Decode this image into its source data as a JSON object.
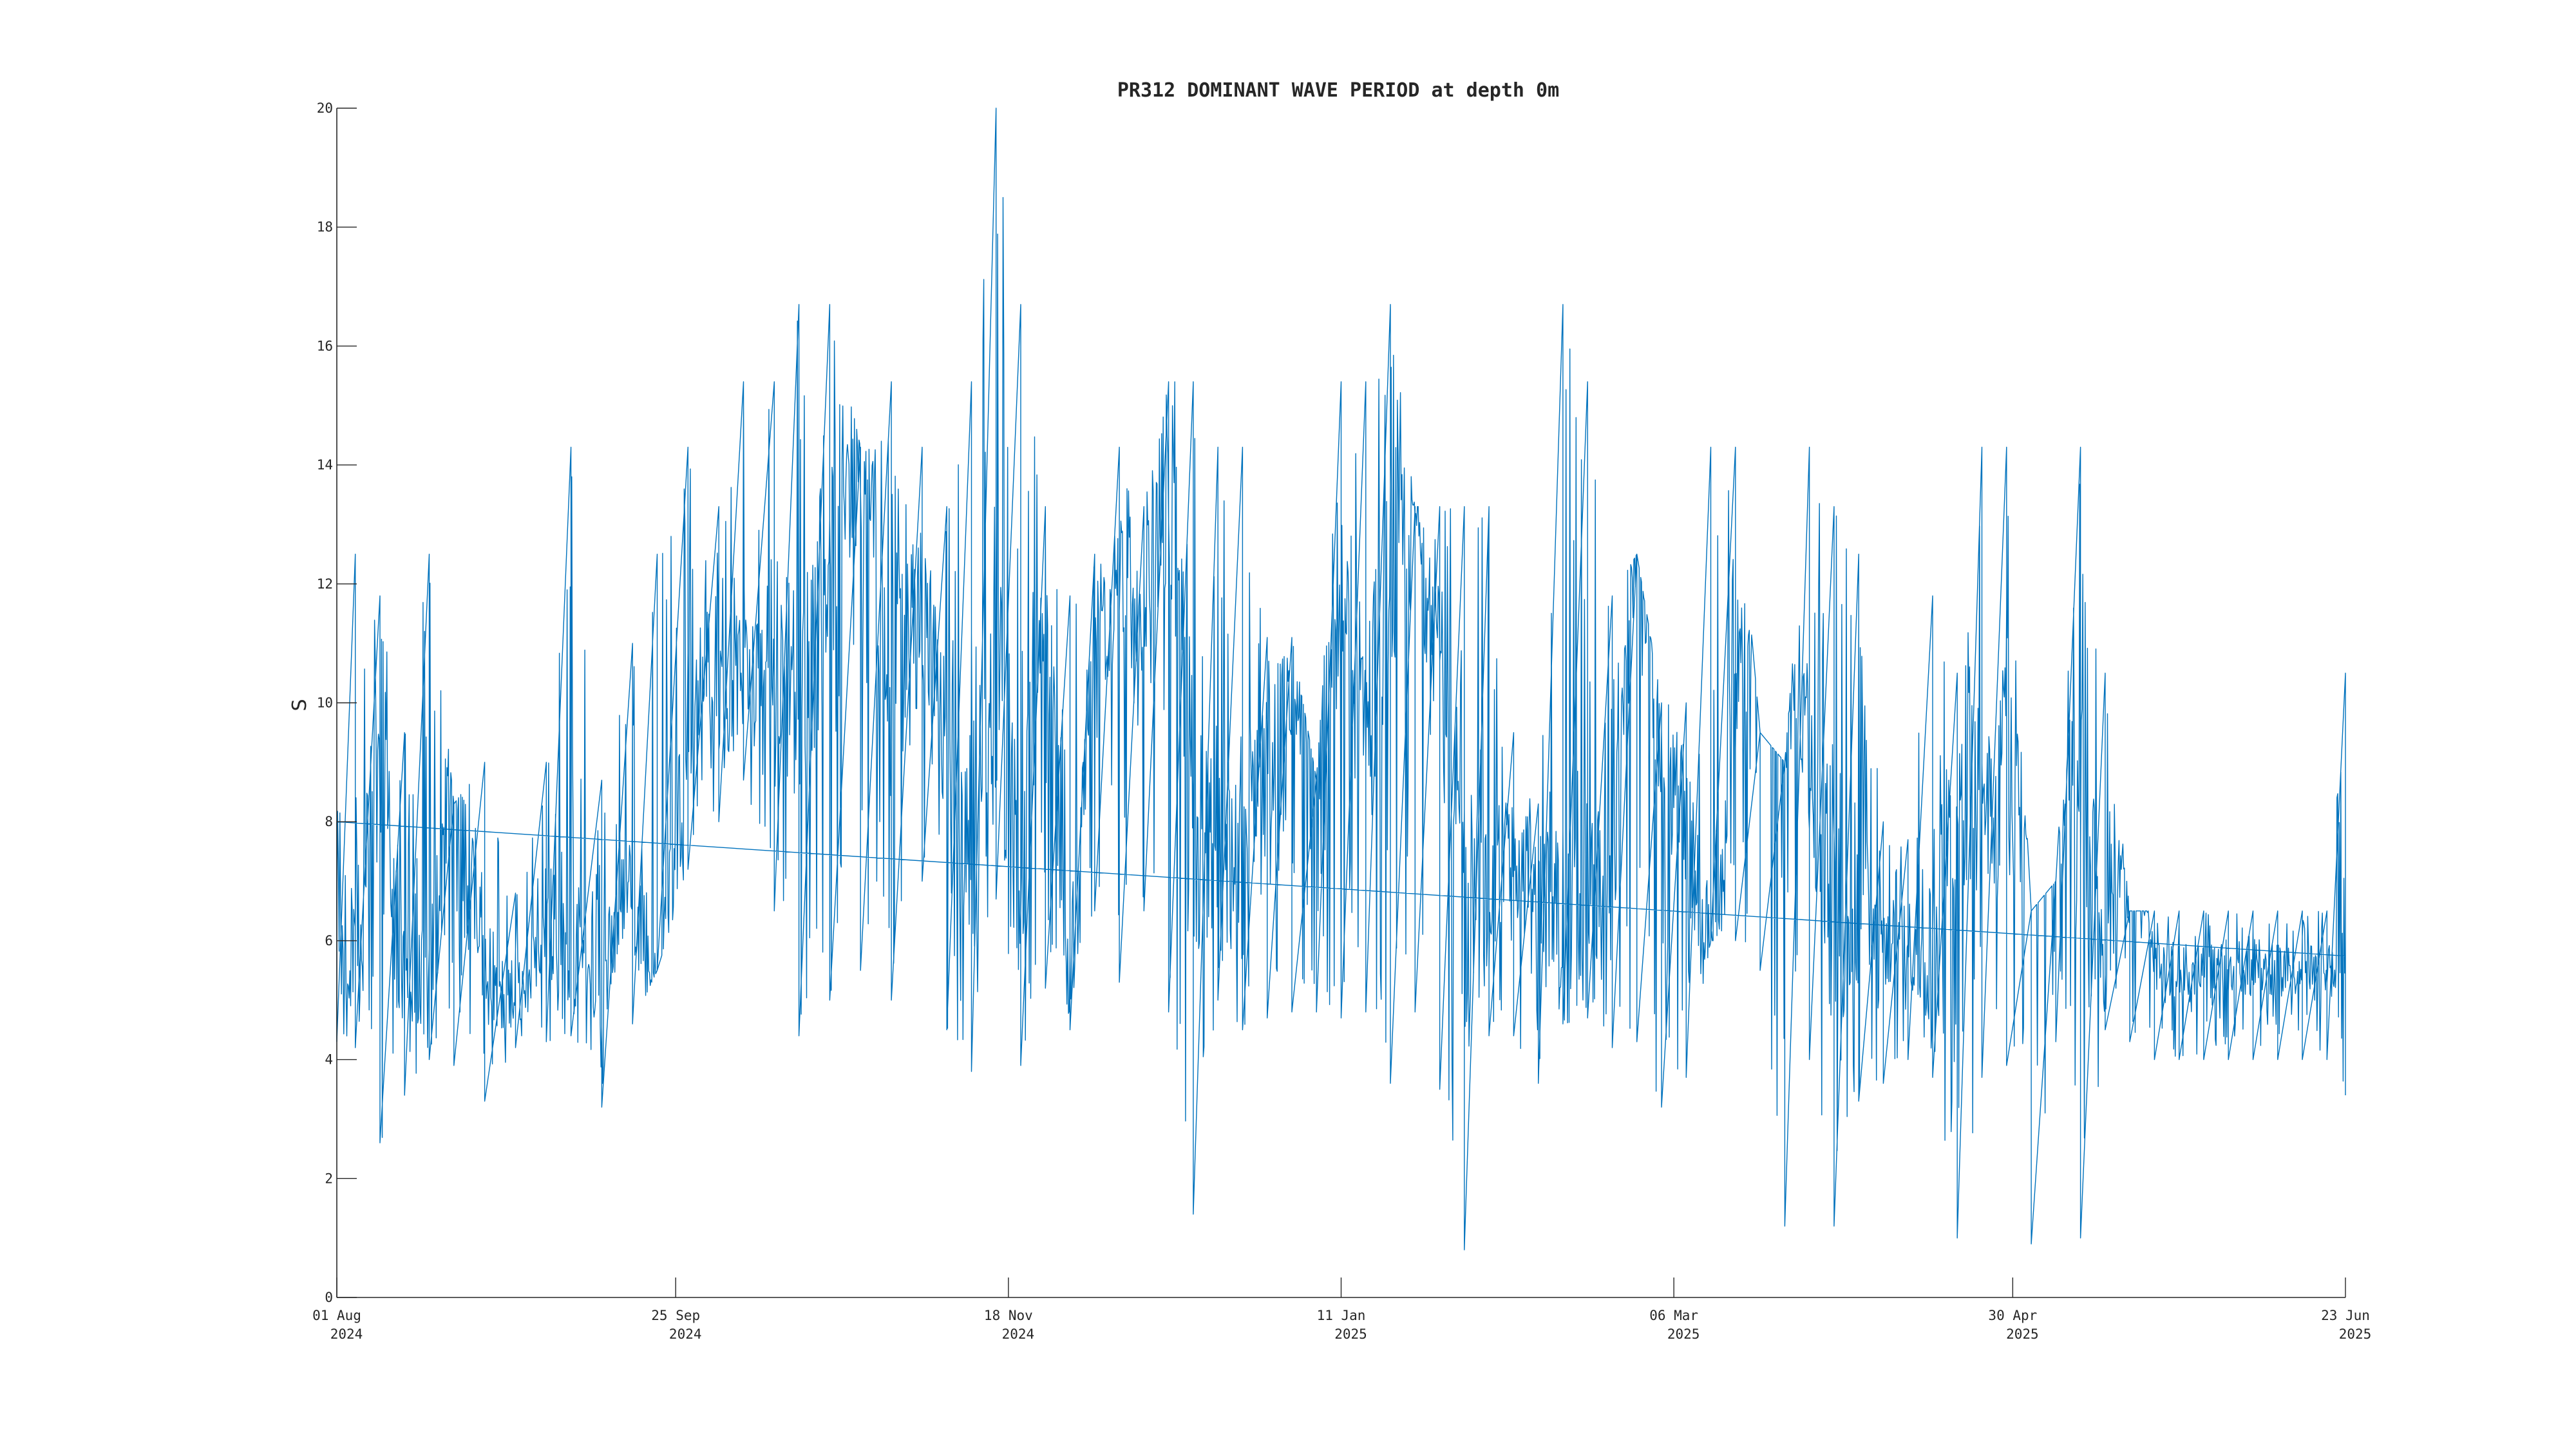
{
  "chart_data": {
    "type": "line",
    "title": "PR312 DOMINANT WAVE PERIOD at depth 0m",
    "xlabel": "",
    "ylabel": "S",
    "ylim": [
      0,
      20
    ],
    "xlim": [
      "2024-08-01",
      "2025-06-23"
    ],
    "grid": false,
    "line_color": "#0072BD",
    "y_ticks": [
      "0",
      "2",
      "4",
      "6",
      "8",
      "10",
      "12",
      "14",
      "16",
      "18",
      "20"
    ],
    "x_ticks": [
      {
        "date": "2024-08-01",
        "day": "01 Aug",
        "year": "2024"
      },
      {
        "date": "2024-09-25",
        "day": "25 Sep",
        "year": "2024"
      },
      {
        "date": "2024-11-18",
        "day": "18 Nov",
        "year": "2024"
      },
      {
        "date": "2025-01-11",
        "day": "11 Jan",
        "year": "2025"
      },
      {
        "date": "2025-03-06",
        "day": "06 Mar",
        "year": "2025"
      },
      {
        "date": "2025-04-30",
        "day": "30 Apr",
        "year": "2025"
      },
      {
        "date": "2025-06-23",
        "day": "23 Jun",
        "year": "2025"
      }
    ],
    "series": [
      {
        "name": "",
        "x": [
          "2024-08-01",
          "2024-08-04",
          "2024-08-08",
          "2024-08-12",
          "2024-08-16",
          "2024-08-20",
          "2024-08-25",
          "2024-08-30",
          "2024-09-04",
          "2024-09-08",
          "2024-09-13",
          "2024-09-18",
          "2024-09-22",
          "2024-09-27",
          "2024-10-02",
          "2024-10-06",
          "2024-10-11",
          "2024-10-15",
          "2024-10-20",
          "2024-10-25",
          "2024-10-30",
          "2024-11-04",
          "2024-11-08",
          "2024-11-12",
          "2024-11-16",
          "2024-11-20",
          "2024-11-24",
          "2024-11-28",
          "2024-12-02",
          "2024-12-06",
          "2024-12-10",
          "2024-12-14",
          "2024-12-18",
          "2024-12-22",
          "2024-12-26",
          "2024-12-30",
          "2025-01-03",
          "2025-01-07",
          "2025-01-11",
          "2025-01-15",
          "2025-01-19",
          "2025-01-23",
          "2025-01-27",
          "2025-01-31",
          "2025-02-04",
          "2025-02-08",
          "2025-02-12",
          "2025-02-16",
          "2025-02-20",
          "2025-02-24",
          "2025-02-28",
          "2025-03-04",
          "2025-03-08",
          "2025-03-12",
          "2025-03-16",
          "2025-03-20",
          "2025-03-24",
          "2025-03-28",
          "2025-04-01",
          "2025-04-05",
          "2025-04-09",
          "2025-04-13",
          "2025-04-17",
          "2025-04-21",
          "2025-04-25",
          "2025-04-29",
          "2025-05-03",
          "2025-05-07",
          "2025-05-11",
          "2025-05-15",
          "2025-05-19",
          "2025-05-23",
          "2025-05-27",
          "2025-05-31",
          "2025-06-04",
          "2025-06-08",
          "2025-06-12",
          "2025-06-16",
          "2025-06-20",
          "2025-06-23"
        ],
        "values": [
          5.2,
          5.6,
          8.5,
          5.0,
          4.9,
          9.5,
          5.5,
          5.0,
          6.0,
          6.2,
          5.5,
          7.0,
          5.0,
          9.5,
          10.0,
          10.5,
          11.0,
          10.0,
          12.5,
          14.5,
          10.0,
          12.0,
          9.0,
          7.5,
          11.0,
          6.5,
          12.0,
          5.0,
          11.0,
          12.0,
          10.5,
          14.0,
          8.0,
          8.0,
          7.0,
          9.0,
          10.5,
          9.5,
          11.5,
          9.5,
          12.0,
          13.0,
          11.0,
          6.5,
          7.0,
          7.5,
          7.0,
          6.0,
          6.5,
          7.0,
          13.5,
          9.0,
          8.0,
          5.5,
          10.0,
          11.5,
          10.0,
          9.0,
          6.5,
          6.5,
          6.0,
          6.0,
          5.5,
          8.5,
          8.5,
          9.0,
          7.5,
          8.0,
          8.5,
          5.5,
          8.5,
          5.5,
          5.5,
          5.5,
          5.5,
          5.5,
          5.5,
          5.5,
          5.5,
          5.0
        ],
        "min": [
          4.3,
          4.2,
          2.6,
          3.4,
          4.0,
          3.9,
          3.3,
          4.2,
          4.3,
          4.4,
          3.2,
          4.6,
          5.5,
          7.2,
          8.0,
          8.7,
          6.5,
          4.4,
          5.0,
          5.5,
          5.0,
          7.0,
          4.5,
          3.8,
          6.7,
          3.9,
          5.2,
          4.5,
          6.5,
          5.3,
          6.5,
          4.8,
          1.4,
          5.0,
          4.5,
          4.7,
          4.8,
          4.8,
          4.7,
          4.8,
          3.6,
          4.8,
          3.5,
          0.8,
          4.4,
          4.4,
          3.6,
          4.6,
          4.7,
          4.2,
          4.3,
          3.2,
          3.7,
          6.0,
          6.0,
          5.5,
          1.2,
          4.0,
          1.2,
          3.3,
          3.6,
          4.0,
          3.7,
          1.0,
          3.7,
          3.9,
          0.9,
          4.3,
          1.0,
          4.5,
          4.3,
          4.0,
          4.0,
          4.0,
          4.0,
          4.0,
          4.0,
          4.0,
          4.0,
          3.4
        ],
        "max": [
          8.0,
          12.5,
          11.8,
          9.5,
          12.5,
          8.3,
          9.0,
          6.8,
          9.0,
          14.3,
          8.7,
          11.0,
          12.5,
          14.3,
          13.3,
          15.4,
          15.4,
          16.7,
          16.7,
          14.3,
          15.4,
          14.3,
          13.3,
          15.4,
          20.0,
          16.7,
          13.3,
          11.8,
          12.5,
          14.3,
          13.3,
          15.4,
          15.4,
          14.3,
          14.3,
          11.1,
          11.1,
          8.7,
          15.4,
          15.4,
          16.7,
          13.3,
          13.3,
          13.3,
          13.3,
          9.5,
          8.3,
          16.7,
          15.4,
          11.8,
          12.5,
          10.0,
          10.0,
          14.3,
          14.3,
          9.5,
          9.0,
          14.3,
          13.3,
          12.5,
          8.0,
          7.7,
          11.8,
          10.5,
          14.3,
          14.3,
          6.5,
          7.0,
          14.3,
          10.5,
          6.5,
          6.5,
          6.5,
          6.5,
          6.5,
          6.5,
          6.5,
          6.5,
          6.5,
          10.5
        ]
      }
    ]
  }
}
